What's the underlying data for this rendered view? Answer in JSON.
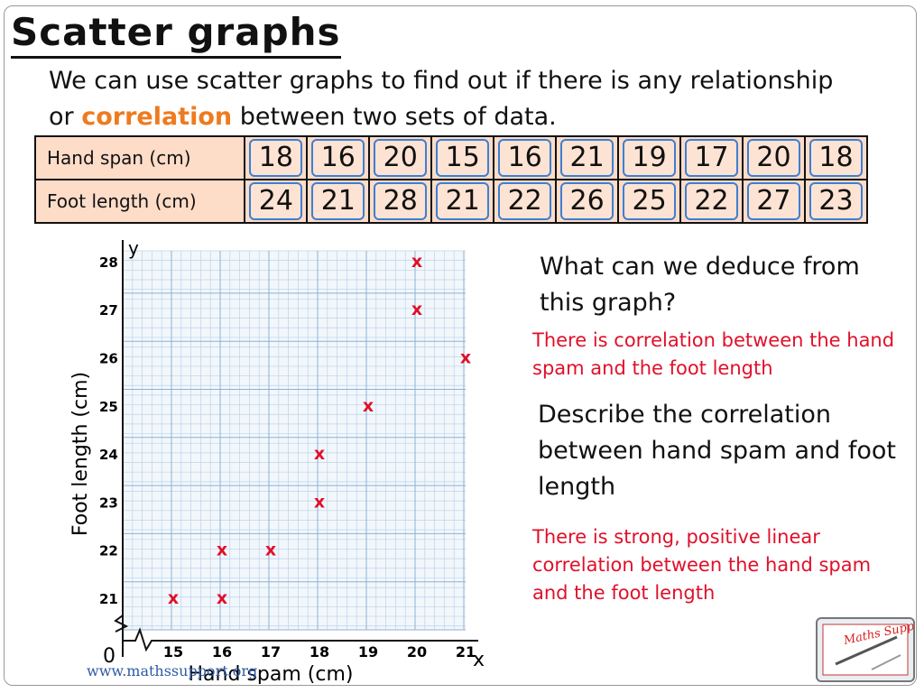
{
  "slide": {
    "title": "Scatter graphs",
    "intro_part1": "We can use scatter graphs to find out if there is any relationship or ",
    "intro_keyword": "correlation",
    "intro_part2": " between two sets of data.",
    "keyword_color": "#ee7b1f",
    "answer_color": "#e0102a"
  },
  "table": {
    "row1_label": "Hand span (cm)",
    "row2_label": "Foot length (cm)",
    "hand_span": [
      "18",
      "16",
      "20",
      "15",
      "16",
      "21",
      "19",
      "17",
      "20",
      "18"
    ],
    "foot_length": [
      "24",
      "21",
      "28",
      "21",
      "22",
      "26",
      "25",
      "22",
      "27",
      "23"
    ]
  },
  "chart_data": {
    "type": "scatter",
    "xlabel": "Hand spam (cm)",
    "ylabel": "Foot length (cm)",
    "x_axis_letter": "x",
    "y_axis_letter": "y",
    "origin_label": "0",
    "x_ticks": [
      15,
      16,
      17,
      18,
      19,
      20,
      21
    ],
    "y_ticks": [
      21,
      22,
      23,
      24,
      25,
      26,
      27,
      28
    ],
    "xlim": [
      15,
      21
    ],
    "ylim": [
      21,
      28
    ],
    "marker": "x",
    "marker_color": "#e0102a",
    "grid": true,
    "axis_break": true,
    "points": [
      {
        "x": 18,
        "y": 24
      },
      {
        "x": 16,
        "y": 21
      },
      {
        "x": 20,
        "y": 28
      },
      {
        "x": 15,
        "y": 21
      },
      {
        "x": 16,
        "y": 22
      },
      {
        "x": 21,
        "y": 26
      },
      {
        "x": 19,
        "y": 25
      },
      {
        "x": 17,
        "y": 22
      },
      {
        "x": 20,
        "y": 27
      },
      {
        "x": 18,
        "y": 23
      }
    ]
  },
  "questions": {
    "q1": "What can we deduce from this graph?",
    "a1": "There is correlation between the hand spam and the foot length",
    "q2": "Describe the correlation between hand spam and foot length",
    "a2": "There is strong, positive linear correlation between the hand spam and the foot length"
  },
  "footer": {
    "url": "www.mathssupport.org",
    "logo_text": "Maths Support"
  }
}
